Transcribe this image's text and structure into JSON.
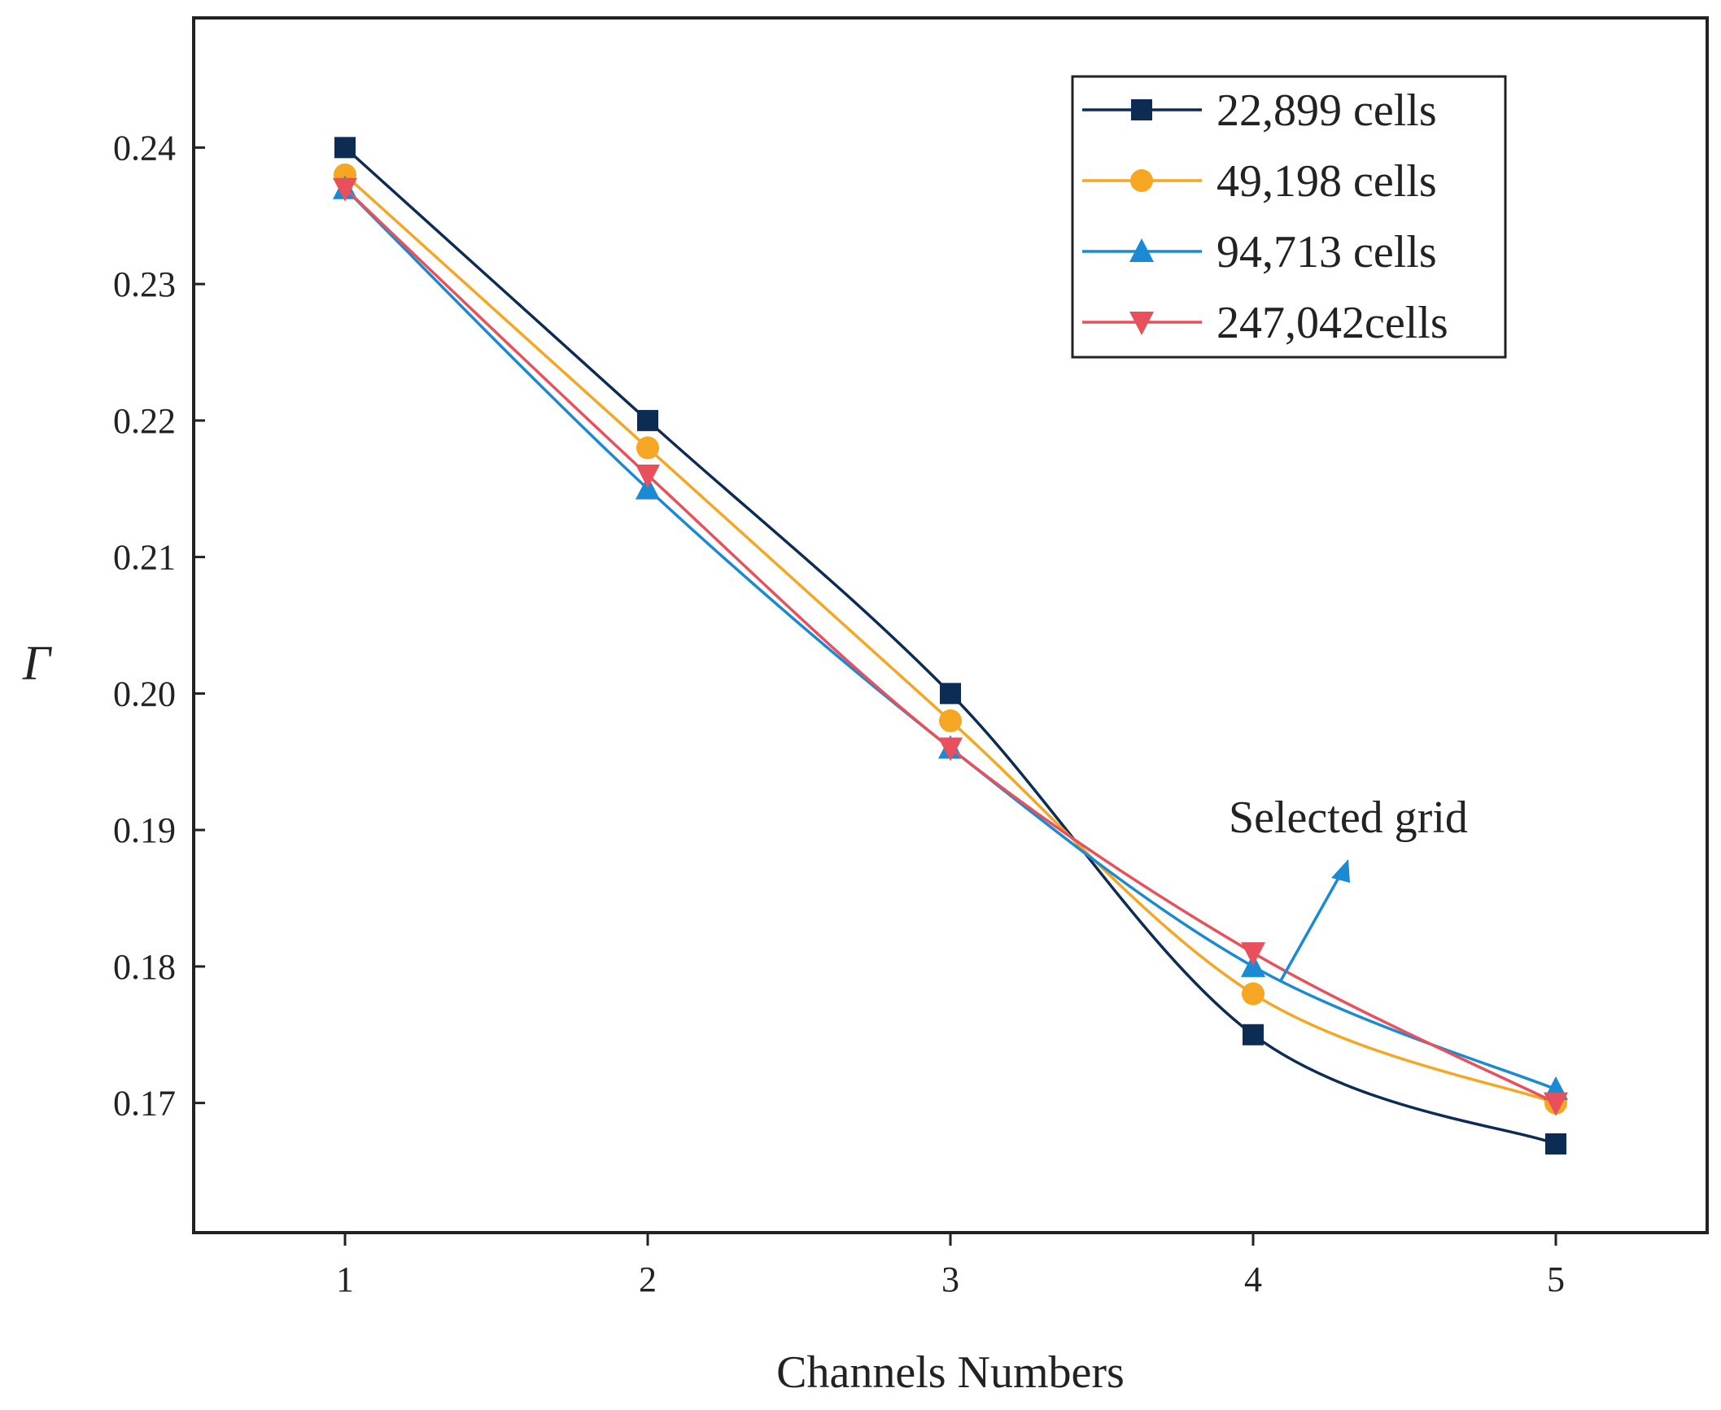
{
  "chart_data": {
    "type": "line",
    "title": "",
    "xlabel": "Channels Numbers",
    "ylabel": "Γ",
    "x": [
      1,
      2,
      3,
      4,
      5
    ],
    "xlim": [
      0.5,
      5.5
    ],
    "ylim": [
      0.1605,
      0.2495
    ],
    "xticks": [
      "1",
      "2",
      "3",
      "4",
      "5"
    ],
    "yticks": [
      "0.17",
      "0.18",
      "0.19",
      "0.20",
      "0.21",
      "0.22",
      "0.23",
      "0.24"
    ],
    "ytick_values": [
      0.17,
      0.18,
      0.19,
      0.2,
      0.21,
      0.22,
      0.23,
      0.24
    ],
    "grid": false,
    "legend_position": "top-right",
    "series": [
      {
        "name": "22,899 cells",
        "values": [
          0.24,
          0.22,
          0.2,
          0.175,
          0.167
        ],
        "color": "#0d2c54",
        "marker": "square"
      },
      {
        "name": "49,198 cells",
        "values": [
          0.238,
          0.218,
          0.198,
          0.178,
          0.17
        ],
        "color": "#f5a623",
        "marker": "circle"
      },
      {
        "name": "94,713 cells",
        "values": [
          0.237,
          0.215,
          0.196,
          0.18,
          0.171
        ],
        "color": "#1a8ad4",
        "marker": "triangle-up"
      },
      {
        "name": "247,042cells",
        "values": [
          0.237,
          0.216,
          0.196,
          0.181,
          0.17
        ],
        "color": "#e8505b",
        "marker": "triangle-down"
      }
    ],
    "annotation": {
      "text": "Selected grid",
      "color": "#1a8ad4"
    }
  }
}
